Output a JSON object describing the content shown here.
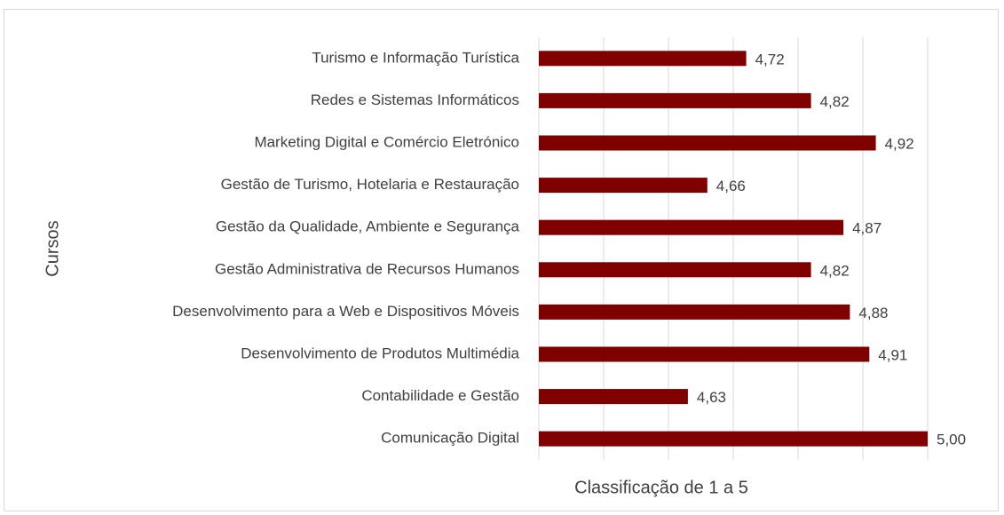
{
  "chart_data": {
    "type": "barh",
    "x_label": "Classificação de 1 a 5",
    "y_label": "Cursos",
    "categories": [
      "Turismo e Informação Turística",
      "Redes e Sistemas Informáticos",
      "Marketing Digital e Comércio Eletrónico",
      "Gestão de Turismo, Hotelaria e Restauração",
      "Gestão da Qualidade, Ambiente e Segurança",
      "Gestão Administrativa de Recursos Humanos",
      "Desenvolvimento para a Web e Dispositivos Móveis",
      "Desenvolvimento de Produtos Multimédia",
      "Contabilidade e Gestão",
      "Comunicação Digital"
    ],
    "values": [
      4.72,
      4.82,
      4.92,
      4.66,
      4.87,
      4.82,
      4.88,
      4.91,
      4.63,
      5.0
    ],
    "value_labels": [
      "4,72",
      "4,82",
      "4,92",
      "4,66",
      "4,87",
      "4,82",
      "4,88",
      "4,91",
      "4,63",
      "5,00"
    ],
    "color": "#800000",
    "xlim": [
      4.4,
      5.0
    ],
    "xticks": [
      4.4,
      4.5,
      4.6,
      4.7,
      4.8,
      4.9,
      5.0
    ],
    "grid": true
  }
}
